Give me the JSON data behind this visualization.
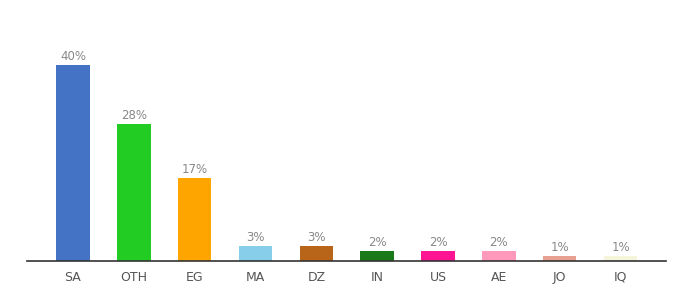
{
  "categories": [
    "SA",
    "OTH",
    "EG",
    "MA",
    "DZ",
    "IN",
    "US",
    "AE",
    "JO",
    "IQ"
  ],
  "values": [
    40,
    28,
    17,
    3,
    3,
    2,
    2,
    2,
    1,
    1
  ],
  "labels": [
    "40%",
    "28%",
    "17%",
    "3%",
    "3%",
    "2%",
    "2%",
    "2%",
    "1%",
    "1%"
  ],
  "bar_colors": [
    "#4472C4",
    "#22CC22",
    "#FFA500",
    "#87CEEB",
    "#B8651A",
    "#1A7A1A",
    "#FF1493",
    "#FF99BB",
    "#E8A090",
    "#F5F5DC"
  ],
  "ylim": [
    0,
    46
  ],
  "background_color": "#ffffff",
  "label_fontsize": 8.5,
  "tick_fontsize": 9,
  "label_color": "#888888",
  "tick_color": "#555555",
  "bar_width": 0.55
}
